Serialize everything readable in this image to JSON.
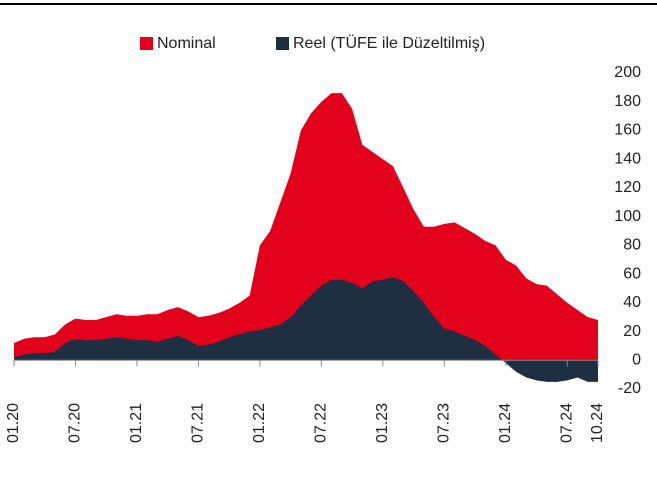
{
  "chart_data": {
    "type": "area",
    "categories": [
      "01.20",
      null,
      null,
      null,
      null,
      null,
      "07.20",
      null,
      null,
      null,
      null,
      null,
      "01.21",
      null,
      null,
      null,
      null,
      null,
      "07.21",
      null,
      null,
      null,
      null,
      null,
      "01.22",
      null,
      null,
      null,
      null,
      null,
      "07.22",
      null,
      null,
      null,
      null,
      null,
      "01.23",
      null,
      null,
      null,
      null,
      null,
      "07.23",
      null,
      null,
      null,
      null,
      null,
      "01.24",
      null,
      null,
      null,
      null,
      null,
      "07.24",
      null,
      null,
      "10.24"
    ],
    "series": [
      {
        "name": "Nominal",
        "color": "#e2001a",
        "values": [
          12,
          15,
          16,
          16,
          18,
          25,
          29,
          28,
          28,
          30,
          32,
          31,
          31,
          32,
          32,
          35,
          37,
          34,
          30,
          31,
          33,
          36,
          40,
          45,
          80,
          90,
          110,
          130,
          160,
          172,
          180,
          186,
          186,
          175,
          150,
          145,
          140,
          135,
          120,
          105,
          93,
          93,
          95,
          96,
          92,
          88,
          83,
          80,
          70,
          66,
          57,
          53,
          52,
          46,
          40,
          35,
          30,
          28
        ]
      },
      {
        "name": "Reel (TÜFE ile Düzeltilmiş)",
        "color": "#1e2f42",
        "values": [
          2,
          4,
          5,
          5,
          6,
          12,
          15,
          14,
          14,
          15,
          16,
          15,
          14,
          14,
          13,
          15,
          17,
          14,
          10,
          11,
          13,
          16,
          18,
          20,
          21,
          23,
          25,
          30,
          38,
          45,
          52,
          56,
          56,
          54,
          50,
          55,
          56,
          58,
          55,
          48,
          40,
          30,
          22,
          20,
          17,
          14,
          10,
          4,
          -2,
          -8,
          -12,
          -14,
          -15,
          -15,
          -14,
          -12,
          -15,
          -15
        ]
      }
    ],
    "ylim": [
      -20,
      200
    ],
    "yticks": [
      -20,
      0,
      20,
      40,
      60,
      80,
      100,
      120,
      140,
      160,
      180,
      200
    ]
  }
}
